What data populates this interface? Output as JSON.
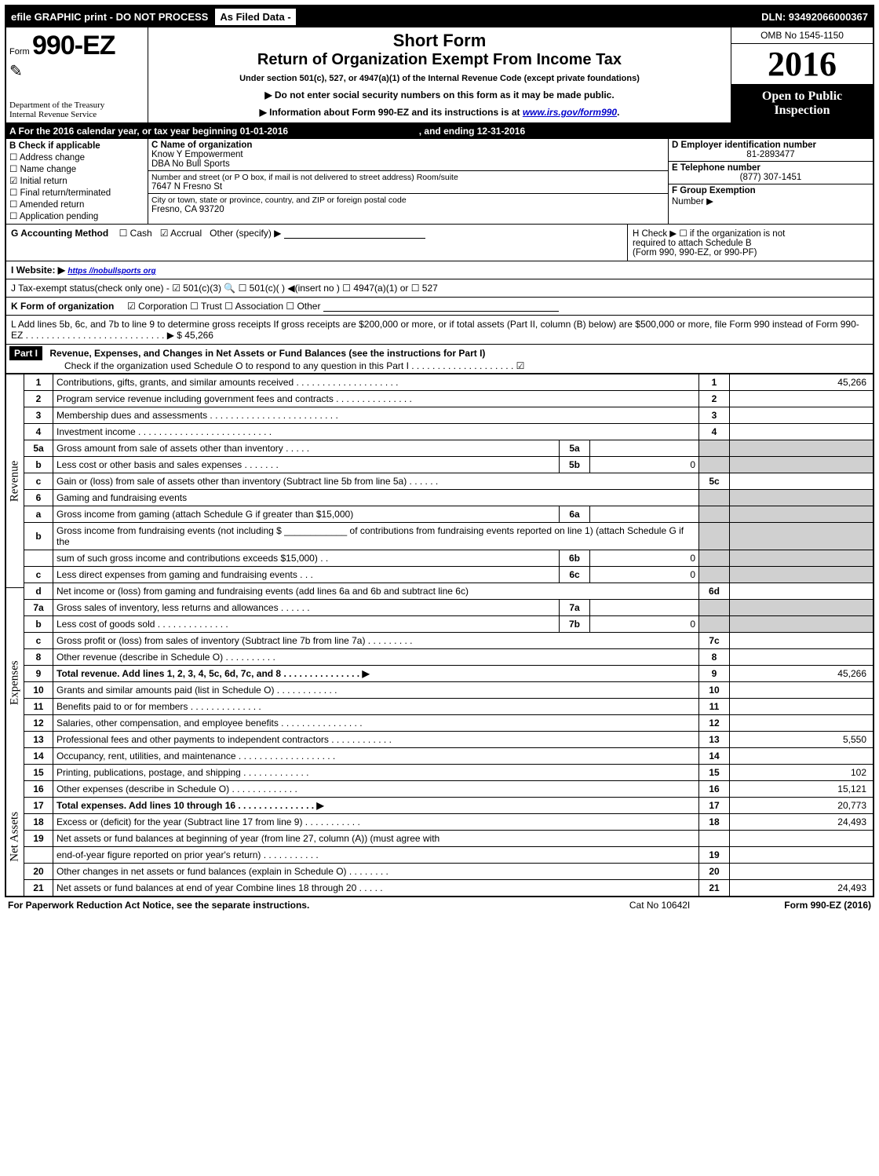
{
  "topbar": {
    "left": "efile GRAPHIC print - DO NOT PROCESS",
    "mid": "As Filed Data -",
    "right": "DLN: 93492066000367"
  },
  "header": {
    "form_prefix": "Form",
    "form_number": "990-EZ",
    "dept1": "Department of the Treasury",
    "dept2": "Internal Revenue Service",
    "short_form": "Short Form",
    "title": "Return of Organization Exempt From Income Tax",
    "under": "Under section 501(c), 527, or 4947(a)(1) of the Internal Revenue Code (except private foundations)",
    "instr1": "▶ Do not enter social security numbers on this form as it may be made public.",
    "instr2_prefix": "▶ Information about Form 990-EZ and its instructions is at ",
    "instr2_link": "www.irs.gov/form990",
    "instr2_suffix": ".",
    "omb": "OMB No 1545-1150",
    "year": "2016",
    "open1": "Open to Public",
    "open2": "Inspection"
  },
  "lineA": {
    "text_prefix": "A  For the 2016 calendar year, or tax year beginning 01-01-2016",
    "text_mid": ", and ending 12-31-2016"
  },
  "sectionB": {
    "heading": "B  Check if applicable",
    "items": [
      {
        "box": "☐",
        "label": "Address change"
      },
      {
        "box": "☐",
        "label": "Name change"
      },
      {
        "box": "☑",
        "label": "Initial return"
      },
      {
        "box": "☐",
        "label": "Final return/terminated"
      },
      {
        "box": "☐",
        "label": "Amended return"
      },
      {
        "box": "☐",
        "label": "Application pending"
      }
    ],
    "c_label": "C Name of organization",
    "c_name": "Know Y Empowerment",
    "c_dba": "DBA No Bull Sports",
    "addr_label": "Number and street (or P O  box, if mail is not delivered to street address)  Room/suite",
    "addr": "7647 N Fresno St",
    "city_label": "City or town, state or province, country, and ZIP or foreign postal code",
    "city": "Fresno, CA  93720",
    "d_label": "D Employer identification number",
    "d_val": "81-2893477",
    "e_label": "E Telephone number",
    "e_val": "(877) 307-1451",
    "f_label": "F Group Exemption",
    "f_label2": "Number   ▶"
  },
  "lineG": {
    "label": "G Accounting Method",
    "cash": "☐ Cash",
    "accrual": "☑ Accrual",
    "other": "Other (specify) ▶"
  },
  "lineH": {
    "text1": "H   Check ▶  ☐  if the organization is not",
    "text2": "required to attach Schedule B",
    "text3": "(Form 990, 990-EZ, or 990-PF)"
  },
  "lineI": {
    "label": "I Website: ▶",
    "link": "https //nobullsports org"
  },
  "lineJ": {
    "text": "J Tax-exempt status(check only one) - ☑ 501(c)(3) 🔍 ☐  501(c)(  ) ◀(insert no ) ☐ 4947(a)(1) or  ☐ 527"
  },
  "lineK": {
    "label": "K Form of organization",
    "opts": "☑ Corporation   ☐ Trust   ☐ Association   ☐ Other"
  },
  "lineL": {
    "text": "L Add lines 5b, 6c, and 7b to line 9 to determine gross receipts  If gross receipts are $200,000 or more, or if total assets (Part II, column (B) below) are $500,000 or more, file Form 990 instead of Form 990-EZ  .  .  .  .  .  .  .  .  .  .  .  .  .  .  .  .  .  .  .  .  .  .  .  .  .  .  . ▶ $ 45,266"
  },
  "part1": {
    "label": "Part I",
    "title": "Revenue, Expenses, and Changes in Net Assets or Fund Balances (see the instructions for Part I)",
    "check": "Check if the organization used Schedule O to respond to any question in this Part I .  .  .  .  .  .  .  .  .  .  .  .  .  .  .  .  .  .  .  . ☑"
  },
  "side_labels": {
    "revenue": "Revenue",
    "expenses": "Expenses",
    "netassets": "Net Assets"
  },
  "lines": [
    {
      "n": "1",
      "d": "Contributions, gifts, grants, and similar amounts received .  .  .  .  .  .  .  .  .  .  .  .  .  .  .  .  .  .  .  .",
      "bn": "1",
      "bv": "45,266"
    },
    {
      "n": "2",
      "d": "Program service revenue including government fees and contracts .  .  .  .  .  .  .  .  .  .  .  .  .  .  .",
      "bn": "2",
      "bv": ""
    },
    {
      "n": "3",
      "d": "Membership dues and assessments .  .  .  .  .  .  .  .  .  .  .  .  .  .  .  .  .  .  .  .  .  .  .  .  .",
      "bn": "3",
      "bv": ""
    },
    {
      "n": "4",
      "d": "Investment income .  .  .  .  .  .  .  .  .  .  .  .  .  .  .  .  .  .  .  .  .  .  .  .  .  .",
      "bn": "4",
      "bv": ""
    },
    {
      "n": "5a",
      "d": "Gross amount from sale of assets other than inventory .  .  .  .  .",
      "ib": "5a",
      "iv": "",
      "shade": true
    },
    {
      "n": "b",
      "d": "Less  cost or other basis and sales expenses .  .  .  .  .  .  .",
      "ib": "5b",
      "iv": "0",
      "shade": true,
      "iv_align": "right"
    },
    {
      "n": "c",
      "d": "Gain or (loss) from sale of assets other than inventory (Subtract line 5b from line 5a) .  .  .  .  .  .",
      "bn": "5c",
      "bv": ""
    },
    {
      "n": "6",
      "d": "Gaming and fundraising events",
      "shade": true
    },
    {
      "n": "a",
      "d": "Gross income from gaming (attach Schedule G if greater than $15,000)",
      "ib": "6a",
      "iv": "",
      "shade": true
    },
    {
      "n": "b",
      "d": "Gross income from fundraising events (not including $ ____________  of contributions from fundraising events reported on line 1) (attach Schedule G if the",
      "shade": true
    },
    {
      "n": "",
      "d": "sum of such gross income and contributions exceeds $15,000)    .  .",
      "ib": "6b",
      "iv": "0",
      "shade": true,
      "iv_align": "right"
    },
    {
      "n": "c",
      "d": "Less  direct expenses from gaming and fundraising events       .  .  .",
      "ib": "6c",
      "iv": "0",
      "shade": true,
      "iv_align": "right"
    },
    {
      "n": "d",
      "d": "Net income or (loss) from gaming and fundraising events (add lines 6a and 6b and subtract line 6c)",
      "bn": "6d",
      "bv": ""
    },
    {
      "n": "7a",
      "d": "Gross sales of inventory, less returns and allowances .  .  .  .  .  .",
      "ib": "7a",
      "iv": "",
      "shade": true
    },
    {
      "n": "b",
      "d": "Less  cost of goods sold           .  .  .  .  .  .  .  .  .  .  .  .  .  .",
      "ib": "7b",
      "iv": "0",
      "shade": true,
      "iv_align": "right"
    },
    {
      "n": "c",
      "d": "Gross profit or (loss) from sales of inventory (Subtract line 7b from line 7a) .  .  .  .  .  .  .  .  .",
      "bn": "7c",
      "bv": ""
    },
    {
      "n": "8",
      "d": "Other revenue (describe in Schedule O)                        .  .  .  .  .  .  .  .  .  .",
      "bn": "8",
      "bv": ""
    },
    {
      "n": "9",
      "d": "Total revenue. Add lines 1, 2, 3, 4, 5c, 6d, 7c, and 8  .  .  .  .  .  .  .  .  .  .  .  .  .  .  .    ▶",
      "bn": "9",
      "bv": "45,266",
      "bold": true
    },
    {
      "n": "10",
      "d": "Grants and similar amounts paid (list in Schedule O)         .  .  .  .  .  .  .  .  .  .  .  .",
      "bn": "10",
      "bv": ""
    },
    {
      "n": "11",
      "d": "Benefits paid to or for members                    .  .  .  .  .  .  .  .  .  .  .  .  .  .",
      "bn": "11",
      "bv": ""
    },
    {
      "n": "12",
      "d": "Salaries, other compensation, and employee benefits .  .  .  .  .  .  .  .  .  .  .  .  .  .  .  .",
      "bn": "12",
      "bv": ""
    },
    {
      "n": "13",
      "d": "Professional fees and other payments to independent contractors  .  .  .  .  .  .  .  .  .  .  .  .",
      "bn": "13",
      "bv": "5,550"
    },
    {
      "n": "14",
      "d": "Occupancy, rent, utilities, and maintenance .  .  .  .  .  .  .  .  .  .  .  .  .  .  .  .  .  .  .",
      "bn": "14",
      "bv": ""
    },
    {
      "n": "15",
      "d": "Printing, publications, postage, and shipping           .  .  .  .  .  .  .  .  .  .  .  .  .",
      "bn": "15",
      "bv": "102"
    },
    {
      "n": "16",
      "d": "Other expenses (describe in Schedule O)              .  .  .  .  .  .  .  .  .  .  .  .  .",
      "bn": "16",
      "bv": "15,121"
    },
    {
      "n": "17",
      "d": "Total expenses. Add lines 10 through 16         .  .  .  .  .  .  .  .  .  .  .  .  .  .  .   ▶",
      "bn": "17",
      "bv": "20,773",
      "bold": true
    },
    {
      "n": "18",
      "d": "Excess or (deficit) for the year (Subtract line 17 from line 9)       .  .  .  .  .  .  .  .  .  .  .",
      "bn": "18",
      "bv": "24,493"
    },
    {
      "n": "19",
      "d": "Net assets or fund balances at beginning of year (from line 27, column (A)) (must agree with"
    },
    {
      "n": "",
      "d": "end-of-year figure reported on prior year's return)             .  .  .  .  .  .  .  .  .  .  .",
      "bn": "19",
      "bv": ""
    },
    {
      "n": "20",
      "d": "Other changes in net assets or fund balances (explain in Schedule O)     .  .  .  .  .  .  .  .",
      "bn": "20",
      "bv": ""
    },
    {
      "n": "21",
      "d": "Net assets or fund balances at end of year  Combine lines 18 through 20         .  .  .  .  .",
      "bn": "21",
      "bv": "24,493"
    }
  ],
  "footer": {
    "left": "For Paperwork Reduction Act Notice, see the separate instructions.",
    "mid": "Cat No  10642I",
    "right": "Form 990-EZ (2016)"
  }
}
